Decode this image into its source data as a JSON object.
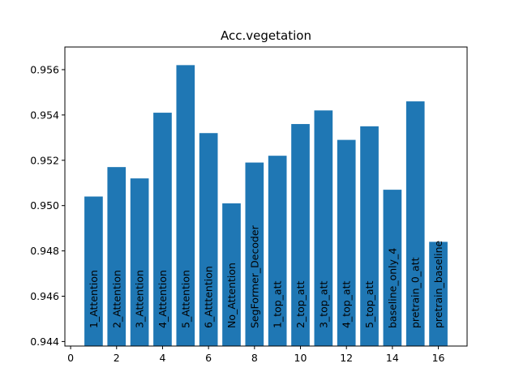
{
  "chart_data": {
    "type": "bar",
    "title": "Acc.vegetation",
    "xlabel": "",
    "ylabel": "",
    "x": [
      1,
      2,
      3,
      4,
      5,
      6,
      7,
      8,
      9,
      10,
      11,
      12,
      13,
      14,
      15,
      16
    ],
    "categories": [
      "1_Attention",
      "2_Attention",
      "3_Attention",
      "4_Attention",
      "5_Attention",
      "6_Atttention",
      "No_Attention",
      "SegFormer_Decoder",
      "1_top_att",
      "2_top_att",
      "3_top_att",
      "4_top_att",
      "5_top_att",
      "baseline_only_4",
      "pretrain_0_att",
      "pretrain_baseline"
    ],
    "values": [
      0.9504,
      0.9517,
      0.9512,
      0.9541,
      0.9562,
      0.9532,
      0.9501,
      0.9519,
      0.9522,
      0.9536,
      0.9542,
      0.9529,
      0.9535,
      0.9507,
      0.9546,
      0.9484
    ],
    "xlim": [
      -0.25,
      17.25
    ],
    "ylim": [
      0.9438,
      0.957
    ],
    "xticks": [
      0,
      2,
      4,
      6,
      8,
      10,
      12,
      14,
      16
    ],
    "yticks": [
      0.944,
      0.946,
      0.948,
      0.95,
      0.952,
      0.954,
      0.956
    ],
    "ytick_labels": [
      "0.944",
      "0.946",
      "0.948",
      "0.950",
      "0.952",
      "0.954",
      "0.956"
    ],
    "bar_color": "#1f77b4",
    "grid": false,
    "legend": false
  }
}
